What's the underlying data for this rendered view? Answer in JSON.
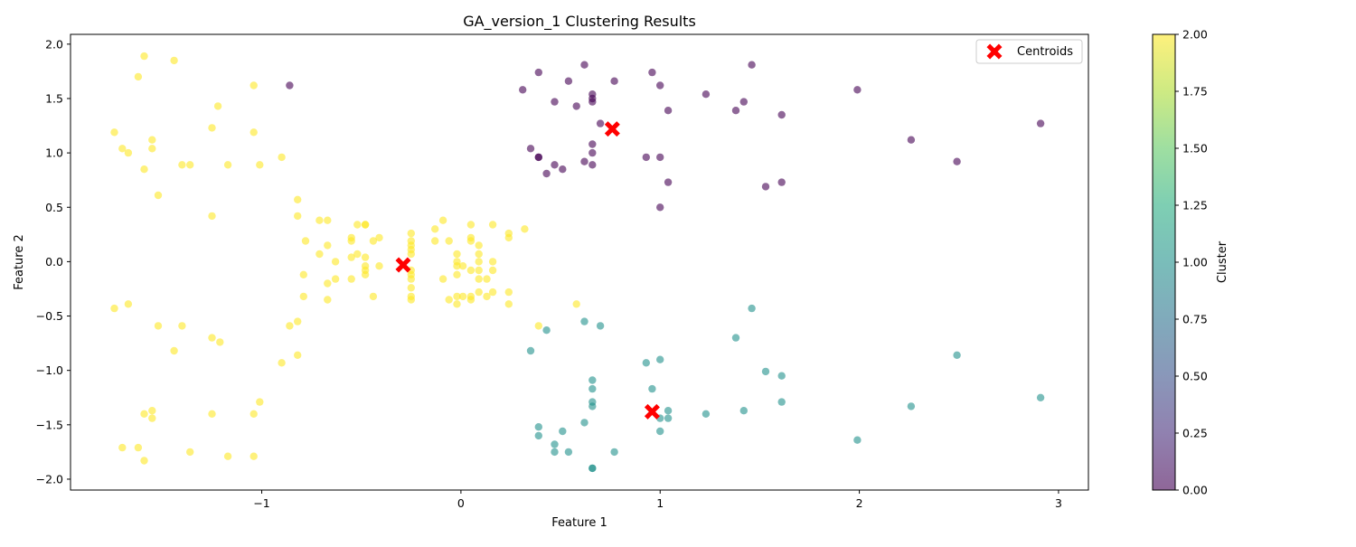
{
  "chart_data": {
    "type": "scatter",
    "title": "GA_version_1 Clustering Results",
    "xlabel": "Feature 1",
    "ylabel": "Feature 2",
    "xlim": [
      -1.96,
      3.15
    ],
    "ylim": [
      -2.1,
      2.09
    ],
    "xticks": [
      -1,
      0,
      1,
      2,
      3
    ],
    "yticks": [
      -2.0,
      -1.5,
      -1.0,
      -0.5,
      0.0,
      0.5,
      1.0,
      1.5,
      2.0
    ],
    "grid": false,
    "legend": {
      "placement": "top-right",
      "entries": [
        "Centroids"
      ]
    },
    "colorbar": {
      "label": "Cluster",
      "range": [
        0.0,
        2.0
      ],
      "ticks": [
        0.0,
        0.25,
        0.5,
        0.75,
        1.0,
        1.25,
        1.5,
        1.75,
        2.0
      ],
      "colormap": "viridis"
    },
    "cluster_colors": {
      "0": "#440154",
      "1": "#21918c",
      "2": "#fde725"
    },
    "centroid_color": "#ff0000",
    "centroids": [
      {
        "x": -0.29,
        "y": -0.03
      },
      {
        "x": 0.76,
        "y": 1.22
      },
      {
        "x": 0.96,
        "y": -1.38
      }
    ],
    "points": [
      [
        -1.59,
        1.89,
        2
      ],
      [
        -1.44,
        1.85,
        2
      ],
      [
        -1.62,
        1.7,
        2
      ],
      [
        -1.04,
        1.62,
        2
      ],
      [
        -1.22,
        1.43,
        2
      ],
      [
        -1.25,
        1.23,
        2
      ],
      [
        -1.74,
        1.19,
        2
      ],
      [
        -1.04,
        1.19,
        2
      ],
      [
        -1.55,
        1.12,
        2
      ],
      [
        -1.7,
        1.04,
        2
      ],
      [
        -1.55,
        1.04,
        2
      ],
      [
        -1.67,
        1.0,
        2
      ],
      [
        -0.9,
        0.96,
        2
      ],
      [
        -1.4,
        0.89,
        2
      ],
      [
        -1.36,
        0.89,
        2
      ],
      [
        -1.17,
        0.89,
        2
      ],
      [
        -1.01,
        0.89,
        2
      ],
      [
        -1.59,
        0.85,
        2
      ],
      [
        -1.52,
        0.61,
        2
      ],
      [
        -0.82,
        0.57,
        2
      ],
      [
        -1.25,
        0.42,
        2
      ],
      [
        -0.82,
        0.42,
        2
      ],
      [
        -0.71,
        0.38,
        2
      ],
      [
        -0.67,
        0.38,
        2
      ],
      [
        -0.52,
        0.34,
        2
      ],
      [
        -0.48,
        0.34,
        2
      ],
      [
        -0.48,
        0.34,
        2
      ],
      [
        -0.25,
        0.26,
        2
      ],
      [
        -0.41,
        0.22,
        2
      ],
      [
        -0.55,
        0.22,
        2
      ],
      [
        -0.55,
        0.19,
        2
      ],
      [
        -0.44,
        0.19,
        2
      ],
      [
        -0.78,
        0.19,
        2
      ],
      [
        -0.67,
        0.15,
        2
      ],
      [
        -0.25,
        0.19,
        2
      ],
      [
        -0.25,
        0.15,
        2
      ],
      [
        -0.25,
        0.11,
        2
      ],
      [
        -0.25,
        0.07,
        2
      ],
      [
        -0.71,
        0.07,
        2
      ],
      [
        -0.52,
        0.07,
        2
      ],
      [
        -0.55,
        0.04,
        2
      ],
      [
        -0.48,
        0.04,
        2
      ],
      [
        -0.63,
        0.0,
        2
      ],
      [
        -0.48,
        -0.04,
        2
      ],
      [
        -0.41,
        -0.04,
        2
      ],
      [
        -0.48,
        -0.08,
        2
      ],
      [
        -0.25,
        -0.08,
        2
      ],
      [
        -0.79,
        -0.12,
        2
      ],
      [
        -0.48,
        -0.12,
        2
      ],
      [
        -0.25,
        -0.12,
        2
      ],
      [
        -0.25,
        -0.16,
        2
      ],
      [
        -0.63,
        -0.16,
        2
      ],
      [
        -0.55,
        -0.16,
        2
      ],
      [
        -0.67,
        -0.2,
        2
      ],
      [
        -0.25,
        -0.24,
        2
      ],
      [
        -0.79,
        -0.32,
        2
      ],
      [
        -0.44,
        -0.32,
        2
      ],
      [
        -0.25,
        -0.32,
        2
      ],
      [
        -0.67,
        -0.35,
        2
      ],
      [
        -0.25,
        -0.35,
        2
      ],
      [
        -0.09,
        0.38,
        2
      ],
      [
        -0.13,
        0.3,
        2
      ],
      [
        0.05,
        0.34,
        2
      ],
      [
        0.16,
        0.34,
        2
      ],
      [
        0.32,
        0.3,
        2
      ],
      [
        0.24,
        0.26,
        2
      ],
      [
        0.24,
        0.22,
        2
      ],
      [
        0.05,
        0.22,
        2
      ],
      [
        -0.13,
        0.19,
        2
      ],
      [
        -0.06,
        0.19,
        2
      ],
      [
        0.05,
        0.19,
        2
      ],
      [
        0.09,
        0.15,
        2
      ],
      [
        -0.02,
        0.07,
        2
      ],
      [
        0.09,
        0.07,
        2
      ],
      [
        -0.02,
        0.0,
        2
      ],
      [
        0.09,
        0.0,
        2
      ],
      [
        0.16,
        0.0,
        2
      ],
      [
        -0.02,
        -0.04,
        2
      ],
      [
        0.01,
        -0.04,
        2
      ],
      [
        0.05,
        -0.08,
        2
      ],
      [
        0.09,
        -0.08,
        2
      ],
      [
        0.16,
        -0.08,
        2
      ],
      [
        -0.02,
        -0.12,
        2
      ],
      [
        -0.09,
        -0.16,
        2
      ],
      [
        0.09,
        -0.16,
        2
      ],
      [
        0.13,
        -0.16,
        2
      ],
      [
        0.09,
        -0.28,
        2
      ],
      [
        0.16,
        -0.28,
        2
      ],
      [
        0.24,
        -0.28,
        2
      ],
      [
        -0.02,
        -0.32,
        2
      ],
      [
        0.01,
        -0.32,
        2
      ],
      [
        0.05,
        -0.32,
        2
      ],
      [
        0.13,
        -0.32,
        2
      ],
      [
        -0.06,
        -0.35,
        2
      ],
      [
        0.05,
        -0.35,
        2
      ],
      [
        -0.02,
        -0.39,
        2
      ],
      [
        0.24,
        -0.39,
        2
      ],
      [
        0.58,
        -0.39,
        2
      ],
      [
        0.39,
        -0.59,
        2
      ],
      [
        -1.74,
        -0.43,
        2
      ],
      [
        -1.67,
        -0.39,
        2
      ],
      [
        -0.82,
        -0.55,
        2
      ],
      [
        -0.86,
        -0.59,
        2
      ],
      [
        -1.52,
        -0.59,
        2
      ],
      [
        -1.4,
        -0.59,
        2
      ],
      [
        -1.25,
        -0.7,
        2
      ],
      [
        -1.21,
        -0.74,
        2
      ],
      [
        -1.44,
        -0.82,
        2
      ],
      [
        -0.82,
        -0.86,
        2
      ],
      [
        -0.9,
        -0.93,
        2
      ],
      [
        -1.01,
        -1.29,
        2
      ],
      [
        -1.55,
        -1.37,
        2
      ],
      [
        -1.59,
        -1.4,
        2
      ],
      [
        -1.25,
        -1.4,
        2
      ],
      [
        -1.04,
        -1.4,
        2
      ],
      [
        -1.55,
        -1.44,
        2
      ],
      [
        -1.7,
        -1.71,
        2
      ],
      [
        -1.62,
        -1.71,
        2
      ],
      [
        -1.36,
        -1.75,
        2
      ],
      [
        -1.17,
        -1.79,
        2
      ],
      [
        -1.04,
        -1.79,
        2
      ],
      [
        -1.59,
        -1.83,
        2
      ],
      [
        0.62,
        1.81,
        0
      ],
      [
        1.46,
        1.81,
        0
      ],
      [
        0.39,
        1.74,
        0
      ],
      [
        0.96,
        1.74,
        0
      ],
      [
        0.54,
        1.66,
        0
      ],
      [
        0.77,
        1.66,
        0
      ],
      [
        -0.86,
        1.62,
        0
      ],
      [
        1.0,
        1.62,
        0
      ],
      [
        0.31,
        1.58,
        0
      ],
      [
        1.99,
        1.58,
        0
      ],
      [
        0.66,
        1.54,
        0
      ],
      [
        1.23,
        1.54,
        0
      ],
      [
        0.66,
        1.5,
        0
      ],
      [
        0.47,
        1.47,
        0
      ],
      [
        0.66,
        1.47,
        0
      ],
      [
        1.42,
        1.47,
        0
      ],
      [
        0.58,
        1.43,
        0
      ],
      [
        1.04,
        1.39,
        0
      ],
      [
        1.38,
        1.39,
        0
      ],
      [
        1.61,
        1.35,
        0
      ],
      [
        0.7,
        1.27,
        0
      ],
      [
        2.91,
        1.27,
        0
      ],
      [
        2.26,
        1.12,
        0
      ],
      [
        0.66,
        1.08,
        0
      ],
      [
        0.35,
        1.04,
        0
      ],
      [
        0.66,
        1.0,
        0
      ],
      [
        0.39,
        0.96,
        0
      ],
      [
        0.39,
        0.96,
        0
      ],
      [
        0.93,
        0.96,
        0
      ],
      [
        1.0,
        0.96,
        0
      ],
      [
        0.62,
        0.92,
        0
      ],
      [
        2.49,
        0.92,
        0
      ],
      [
        0.47,
        0.89,
        0
      ],
      [
        0.66,
        0.89,
        0
      ],
      [
        0.51,
        0.85,
        0
      ],
      [
        0.43,
        0.81,
        0
      ],
      [
        1.04,
        0.73,
        0
      ],
      [
        1.61,
        0.73,
        0
      ],
      [
        1.53,
        0.69,
        0
      ],
      [
        1.0,
        0.5,
        0
      ],
      [
        1.46,
        -0.43,
        1
      ],
      [
        0.62,
        -0.55,
        1
      ],
      [
        0.7,
        -0.59,
        1
      ],
      [
        0.43,
        -0.63,
        1
      ],
      [
        1.38,
        -0.7,
        1
      ],
      [
        0.35,
        -0.82,
        1
      ],
      [
        2.49,
        -0.86,
        1
      ],
      [
        1.0,
        -0.9,
        1
      ],
      [
        0.93,
        -0.93,
        1
      ],
      [
        1.53,
        -1.01,
        1
      ],
      [
        1.61,
        -1.05,
        1
      ],
      [
        0.66,
        -1.09,
        1
      ],
      [
        0.66,
        -1.17,
        1
      ],
      [
        0.96,
        -1.17,
        1
      ],
      [
        2.91,
        -1.25,
        1
      ],
      [
        0.66,
        -1.29,
        1
      ],
      [
        1.61,
        -1.29,
        1
      ],
      [
        0.66,
        -1.33,
        1
      ],
      [
        2.26,
        -1.33,
        1
      ],
      [
        1.04,
        -1.37,
        1
      ],
      [
        1.42,
        -1.37,
        1
      ],
      [
        1.23,
        -1.4,
        1
      ],
      [
        1.0,
        -1.44,
        1
      ],
      [
        1.04,
        -1.44,
        1
      ],
      [
        0.62,
        -1.48,
        1
      ],
      [
        0.39,
        -1.52,
        1
      ],
      [
        0.51,
        -1.56,
        1
      ],
      [
        1.0,
        -1.56,
        1
      ],
      [
        0.39,
        -1.6,
        1
      ],
      [
        1.99,
        -1.64,
        1
      ],
      [
        0.47,
        -1.68,
        1
      ],
      [
        0.47,
        -1.75,
        1
      ],
      [
        0.54,
        -1.75,
        1
      ],
      [
        0.77,
        -1.75,
        1
      ],
      [
        0.66,
        -1.9,
        1
      ],
      [
        0.66,
        -1.9,
        1
      ]
    ]
  }
}
